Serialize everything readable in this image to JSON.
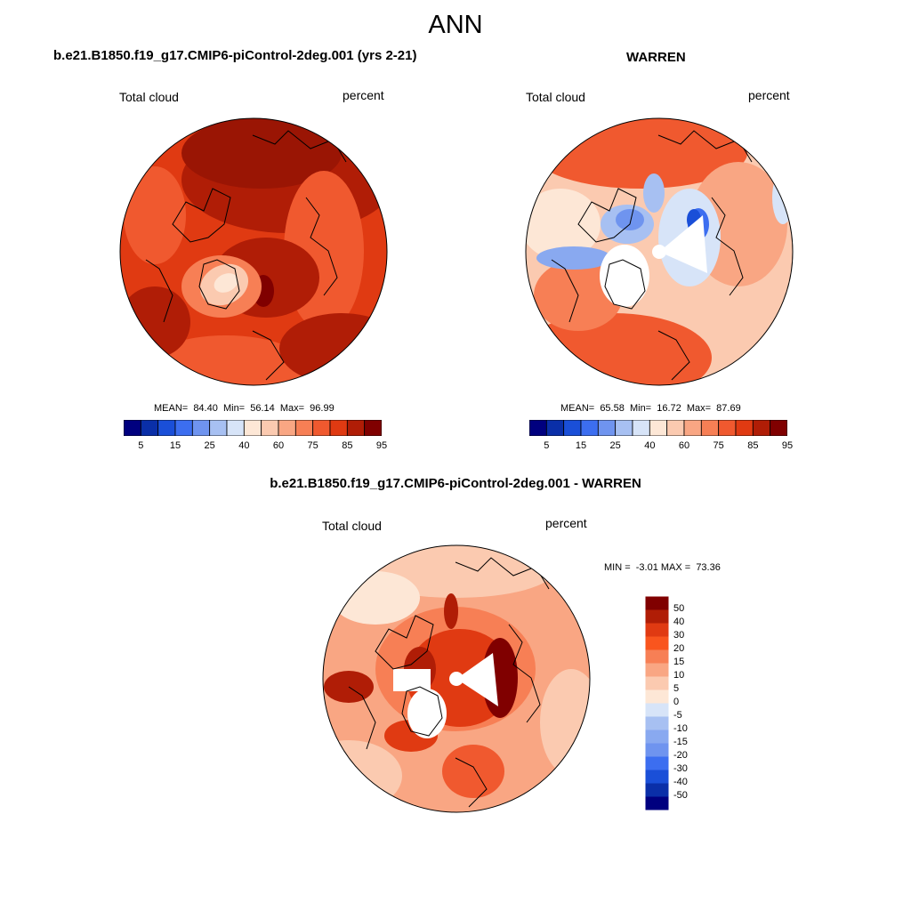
{
  "figure": {
    "title": "ANN"
  },
  "panels": [
    {
      "id": "model",
      "title": "b.e21.B1850.f19_g17.CMIP6-piControl-2deg.001 (yrs 2-21)",
      "left_label": "Total cloud",
      "right_label": "percent",
      "stats": "MEAN=  84.40  Min=  56.14  Max=  96.99",
      "mean": 84.4,
      "min": 56.14,
      "max": 96.99
    },
    {
      "id": "obs",
      "title": "WARREN",
      "left_label": "Total cloud",
      "right_label": "percent",
      "stats": "MEAN=  65.58  Min=  16.72  Max=  87.69",
      "mean": 65.58,
      "min": 16.72,
      "max": 87.69
    },
    {
      "id": "diff",
      "title": "b.e21.B1850.f19_g17.CMIP6-piControl-2deg.001 - WARREN",
      "left_label": "Total cloud",
      "right_label": "percent",
      "stats": "MIN =  -3.01 MAX =  73.36",
      "min": -3.01,
      "max": 73.36
    }
  ],
  "colorbars": {
    "abs": {
      "labels": [
        "5",
        "15",
        "25",
        "40",
        "60",
        "75",
        "85",
        "95"
      ],
      "colors": [
        "#00007f",
        "#0a2fa8",
        "#1a4fd8",
        "#3c6ef0",
        "#6f94ef",
        "#a7c0f2",
        "#d7e4f8",
        "#fde7d6",
        "#fbcab0",
        "#f9a683",
        "#f77f55",
        "#f0592f",
        "#e03a12",
        "#b01d06",
        "#800000"
      ]
    },
    "diff": {
      "labels": [
        "50",
        "40",
        "30",
        "20",
        "15",
        "10",
        "5",
        "0",
        "-5",
        "-10",
        "-15",
        "-20",
        "-30",
        "-40",
        "-50"
      ],
      "colors": [
        "#800000",
        "#b01d06",
        "#e03a12",
        "#f9551e",
        "#f77f55",
        "#f9a683",
        "#fbcab0",
        "#fde7d6",
        "#d7e4f8",
        "#a7c0f2",
        "#89a9f0",
        "#6f94ef",
        "#3c6ef0",
        "#1a4fd8",
        "#0a2fa8",
        "#00007f"
      ]
    }
  }
}
